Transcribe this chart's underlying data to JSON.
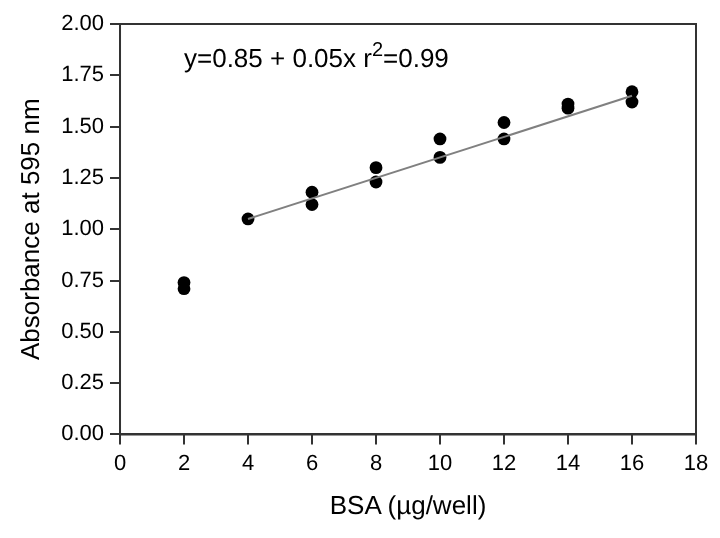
{
  "chart_data": {
    "type": "scatter",
    "xlabel": "BSA (µg/well)",
    "ylabel": "Absorbance at 595 nm",
    "annotations": [
      "y=0.85 + 0.05x r$^{2}$=0.99"
    ],
    "xlim": [
      0,
      18
    ],
    "xticks": [
      0,
      2,
      4,
      6,
      8,
      10,
      12,
      14,
      16,
      18
    ],
    "ylim": [
      0,
      2
    ],
    "yticks": [
      {
        "value": 0,
        "label": "0.00"
      },
      {
        "value": 0.25,
        "label": "0.25"
      },
      {
        "value": 0.5,
        "label": "0.50"
      },
      {
        "value": 0.75,
        "label": "0.75"
      },
      {
        "value": 1,
        "label": "1.00"
      },
      {
        "value": 1.25,
        "label": "1.25"
      },
      {
        "value": 1.5,
        "label": "1.50"
      },
      {
        "value": 1.75,
        "label": "1.75"
      },
      {
        "value": 2,
        "label": "2.00"
      }
    ],
    "grid": false,
    "legend": false,
    "series": [
      {
        "type": "scatter",
        "color": "#000000",
        "marker": "circle",
        "x": [
          2,
          2,
          4,
          6,
          6,
          8,
          8,
          10,
          10,
          12,
          12,
          14,
          14,
          16,
          16
        ],
        "values": [
          0.74,
          0.71,
          1.05,
          1.18,
          1.12,
          1.3,
          1.23,
          1.44,
          1.35,
          1.52,
          1.44,
          1.61,
          1.59,
          1.67,
          1.62
        ]
      },
      {
        "type": "line",
        "color": "#808080",
        "marker": "none",
        "x": [
          4,
          16
        ],
        "values": [
          1.05,
          1.65
        ]
      }
    ]
  }
}
